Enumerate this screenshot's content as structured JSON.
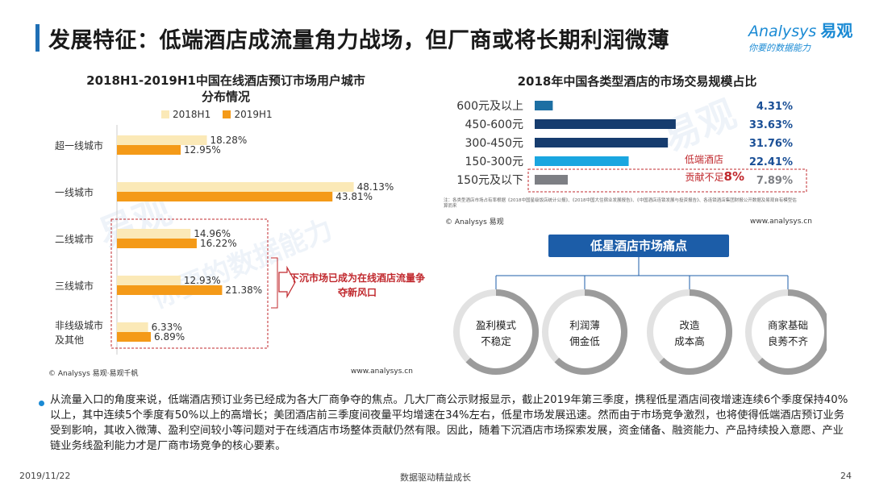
{
  "header": {
    "title": "发展特征：低端酒店成流量角力战场，但厂商或将长期利润微薄",
    "logo_en": "Analysys",
    "logo_cn": "易观",
    "logo_tagline": "你要的数据能力"
  },
  "colors": {
    "accent_blue": "#1f6fb5",
    "bar_2018": "#fbe9b7",
    "bar_2019": "#f49a18",
    "callout_red": "#c0282d",
    "bar_navy": "#163c6e",
    "bar_teal": "#1d6fa3",
    "bar_light_blue": "#1aa6e0",
    "bar_gray": "#7d7f84"
  },
  "chart_data": [
    {
      "type": "bar",
      "orientation": "horizontal",
      "title": "2018H1-2019H1中国在线酒店预订市场用户城市分布情况",
      "categories": [
        "超一线城市",
        "一线城市",
        "二线城市",
        "三线城市",
        "非线级城市及其他"
      ],
      "series": [
        {
          "name": "2018H1",
          "values": [
            18.28,
            48.13,
            14.96,
            12.93,
            6.33
          ],
          "labels": [
            "18.28%",
            "48.13%",
            "14.96%",
            "12.93%",
            "6.33%"
          ]
        },
        {
          "name": "2019H1",
          "values": [
            12.95,
            43.81,
            16.22,
            21.38,
            6.89
          ],
          "labels": [
            "12.95%",
            "43.81%",
            "16.22%",
            "21.38%",
            "6.89%"
          ]
        }
      ],
      "legend": "top",
      "callout": "下沉市场已成为在线酒店流量争夺新风口",
      "source": "© Analysys 易观·易观千帆",
      "url": "www.analysys.cn"
    },
    {
      "type": "bar",
      "orientation": "horizontal",
      "title": "2018年中国各类型酒店的市场交易规模占比",
      "categories": [
        "600元及以上",
        "450-600元",
        "300-450元",
        "150-300元",
        "150元及以下"
      ],
      "values": [
        4.31,
        33.63,
        31.76,
        22.41,
        7.89
      ],
      "labels": [
        "4.31%",
        "33.63%",
        "31.76%",
        "22.41%",
        "7.89%"
      ],
      "annotation_low": "低端酒店",
      "annotation_contribution": "贡献不足",
      "annotation_pct": "8%",
      "note": "注：各类型酒店市场占有率根据《2018中国星级饭店统计公报》、《2018中国大住宿业发展报告》、《中国酒店连锁发展与投资报告》、各连锁酒店集团财报公开数据及易观自有模型估算而来",
      "source": "© Analysys 易观",
      "url": "www.analysys.cn"
    }
  ],
  "pain_points": {
    "title": "低星酒店市场痛点",
    "items": [
      {
        "line1": "盈利模式",
        "line2": "不稳定"
      },
      {
        "line1": "利润薄",
        "line2": "佣金低"
      },
      {
        "line1": "改造",
        "line2": "成本高"
      },
      {
        "line1": "商家基础",
        "line2": "良莠不齐"
      }
    ]
  },
  "body_text": "从流量入口的角度来说，低端酒店预订业务已经成为各大厂商争夺的焦点。几大厂商公示财报显示，截止2019年第三季度，携程低星酒店间夜增速连续6个季度保持40%以上，其中连续5个季度有50%以上的高增长；美团酒店前三季度间夜量平均增速在34%左右，低星市场发展迅速。然而由于市场竞争激烈，也将使得低端酒店预订业务受到影响，其收入微薄、盈利空间较小等问题对于在线酒店市场整体贡献仍然有限。因此，随着下沉酒店市场探索发展，资金储备、融资能力、产品持续投入意愿、产业链业务线盈利能力才是厂商市场竞争的核心要素。",
  "footer": {
    "date": "2019/11/22",
    "slogan": "数据驱动精益成长",
    "page": "24"
  }
}
